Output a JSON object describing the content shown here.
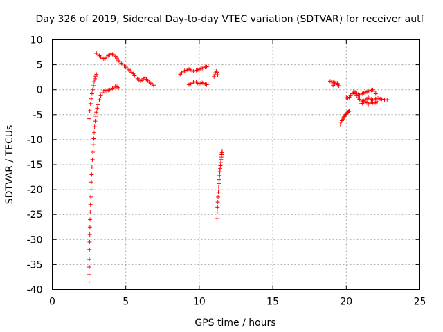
{
  "chart_data": {
    "type": "scatter",
    "title": "Day 326 of 2019, Sidereal Day-to-day VTEC variation (SDTVAR) for receiver autf",
    "xlabel": "GPS time / hours",
    "ylabel": "SDTVAR / TECUs",
    "xlim": [
      0,
      25
    ],
    "ylim": [
      -40,
      10
    ],
    "xticks": [
      0,
      5,
      10,
      15,
      20,
      25
    ],
    "yticks": [
      -40,
      -35,
      -30,
      -25,
      -20,
      -15,
      -10,
      -5,
      0,
      5,
      10
    ],
    "grid": true,
    "marker": "+",
    "series": [
      {
        "name": "SDTVAR",
        "color": "#ff0000",
        "segments": [
          {
            "x": [
              2.5,
              2.55,
              2.6,
              2.65,
              2.7,
              2.75,
              2.8,
              2.85,
              2.9,
              2.95,
              3.0
            ],
            "y": [
              -5.8,
              -4.2,
              -2.8,
              -1.8,
              -0.8,
              0.0,
              0.8,
              1.6,
              2.2,
              2.7,
              3.1
            ]
          },
          {
            "x": [
              2.5,
              2.5,
              2.52,
              2.52,
              2.53,
              2.54,
              2.55,
              2.56,
              2.57,
              2.58,
              2.6,
              2.62,
              2.64,
              2.66,
              2.68,
              2.7,
              2.73,
              2.76,
              2.79,
              2.82,
              2.85,
              2.88,
              2.92,
              2.96,
              3.0,
              3.05,
              3.1,
              3.2,
              3.3,
              3.4,
              3.5,
              3.6,
              3.7,
              3.8,
              3.9,
              4.0,
              4.1,
              4.2,
              4.3,
              4.4,
              4.5
            ],
            "y": [
              -38.5,
              -37.0,
              -35.5,
              -34.0,
              -32.0,
              -30.5,
              -29.0,
              -27.5,
              -26.0,
              -24.5,
              -23.0,
              -21.5,
              -20.0,
              -18.5,
              -17.0,
              -15.5,
              -14.0,
              -12.5,
              -11.0,
              -9.8,
              -8.6,
              -7.4,
              -6.3,
              -5.3,
              -4.5,
              -3.7,
              -3.0,
              -2.0,
              -1.2,
              -0.6,
              -0.2,
              -0.1,
              -0.2,
              -0.1,
              0.0,
              0.1,
              0.3,
              0.5,
              0.7,
              0.6,
              0.4
            ]
          },
          {
            "x": [
              3.0,
              3.1,
              3.2,
              3.3,
              3.4,
              3.5,
              3.6,
              3.7,
              3.8,
              3.9,
              4.0,
              4.1,
              4.2,
              4.3,
              4.4,
              4.5,
              4.6,
              4.7,
              4.8,
              4.9,
              5.0,
              5.1,
              5.2,
              5.3,
              5.4,
              5.5,
              5.6,
              5.7,
              5.8,
              5.9,
              6.0,
              6.1,
              6.2,
              6.3,
              6.4,
              6.5,
              6.6,
              6.7,
              6.8,
              6.9
            ],
            "y": [
              7.3,
              7.0,
              6.8,
              6.5,
              6.3,
              6.2,
              6.3,
              6.5,
              6.8,
              7.0,
              7.2,
              7.1,
              6.9,
              6.7,
              6.3,
              5.8,
              5.6,
              5.3,
              5.1,
              4.8,
              4.5,
              4.3,
              4.0,
              3.8,
              3.5,
              3.2,
              2.8,
              2.5,
              2.2,
              2.0,
              1.8,
              1.9,
              2.2,
              2.4,
              2.1,
              1.8,
              1.5,
              1.3,
              1.1,
              0.9
            ]
          },
          {
            "x": [
              8.7,
              8.8,
              8.9,
              9.0,
              9.1,
              9.2,
              9.3,
              9.4,
              9.5,
              9.6,
              9.7,
              9.8,
              9.9,
              10.0,
              10.1,
              10.2,
              10.3,
              10.4,
              10.5,
              10.6
            ],
            "y": [
              3.1,
              3.4,
              3.6,
              3.8,
              3.9,
              4.0,
              4.1,
              4.0,
              3.8,
              3.7,
              3.8,
              3.9,
              4.0,
              4.1,
              4.2,
              4.3,
              4.4,
              4.5,
              4.6,
              4.7
            ]
          },
          {
            "x": [
              9.3,
              9.4,
              9.5,
              9.6,
              9.7,
              9.8,
              9.9,
              10.0,
              10.1,
              10.2,
              10.3,
              10.4,
              10.5,
              10.6
            ],
            "y": [
              1.0,
              1.2,
              1.3,
              1.5,
              1.6,
              1.5,
              1.3,
              1.2,
              1.3,
              1.4,
              1.3,
              1.1,
              1.0,
              1.1
            ]
          },
          {
            "x": [
              11.0,
              11.05,
              11.1,
              11.15,
              11.2,
              11.25
            ],
            "y": [
              2.6,
              3.0,
              3.4,
              3.7,
              3.5,
              3.0
            ]
          },
          {
            "x": [
              11.2,
              11.22,
              11.24,
              11.26,
              11.28,
              11.3,
              11.32,
              11.34,
              11.36,
              11.38,
              11.4,
              11.42,
              11.44,
              11.46,
              11.48,
              11.5,
              11.52,
              11.54,
              11.56
            ],
            "y": [
              -25.8,
              -24.5,
              -23.5,
              -22.5,
              -21.5,
              -20.5,
              -19.5,
              -18.8,
              -18.0,
              -17.2,
              -16.4,
              -15.8,
              -15.2,
              -14.6,
              -14.0,
              -13.5,
              -13.0,
              -12.6,
              -12.3
            ]
          },
          {
            "x": [
              18.9,
              19.0,
              19.1,
              19.2,
              19.3,
              19.4,
              19.5
            ],
            "y": [
              1.7,
              1.6,
              1.5,
              1.4,
              1.2,
              1.0,
              0.8
            ]
          },
          {
            "x": [
              19.1,
              19.2,
              19.3,
              19.4
            ],
            "y": [
              0.9,
              1.2,
              1.6,
              1.3
            ]
          },
          {
            "x": [
              19.6,
              19.65,
              19.7,
              19.75,
              19.8,
              19.85,
              19.9,
              19.95,
              20.0,
              20.05,
              20.1,
              20.15,
              20.2
            ],
            "y": [
              -6.9,
              -6.5,
              -6.2,
              -5.9,
              -5.6,
              -5.4,
              -5.2,
              -5.0,
              -4.9,
              -4.7,
              -4.5,
              -4.4,
              -4.3
            ]
          },
          {
            "x": [
              20.0,
              20.1,
              20.2,
              20.3,
              20.4,
              20.5,
              20.6,
              20.7,
              20.8,
              20.9,
              21.0,
              21.1,
              21.2,
              21.3,
              21.4,
              21.5,
              21.6,
              21.7,
              21.8,
              21.9,
              22.0,
              22.1,
              22.2,
              22.3,
              22.4,
              22.5,
              22.6,
              22.7,
              22.8
            ],
            "y": [
              -1.6,
              -1.7,
              -1.5,
              -1.2,
              -0.8,
              -0.6,
              -0.8,
              -1.2,
              -1.6,
              -1.9,
              -2.1,
              -2.3,
              -2.2,
              -2.0,
              -1.8,
              -1.6,
              -1.7,
              -1.9,
              -2.1,
              -2.0,
              -1.8,
              -1.7,
              -1.7,
              -1.8,
              -1.9,
              -1.9,
              -2.0,
              -2.0,
              -2.0
            ]
          },
          {
            "x": [
              20.5,
              20.6,
              20.7,
              20.8,
              20.9,
              21.0,
              21.1,
              21.2,
              21.3,
              21.4,
              21.5,
              21.6,
              21.7,
              21.8,
              21.9,
              22.0
            ],
            "y": [
              -0.3,
              -0.5,
              -0.7,
              -0.9,
              -1.1,
              -1.0,
              -0.8,
              -0.6,
              -0.5,
              -0.4,
              -0.3,
              -0.2,
              -0.1,
              0.0,
              -0.3,
              -0.8
            ]
          },
          {
            "x": [
              21.0,
              21.1,
              21.2,
              21.3,
              21.4,
              21.5,
              21.6,
              21.7,
              21.8,
              21.9,
              22.0,
              22.1
            ],
            "y": [
              -2.8,
              -2.7,
              -2.5,
              -2.4,
              -2.6,
              -2.9,
              -2.7,
              -2.5,
              -2.6,
              -2.8,
              -2.6,
              -2.4
            ]
          }
        ]
      }
    ]
  }
}
